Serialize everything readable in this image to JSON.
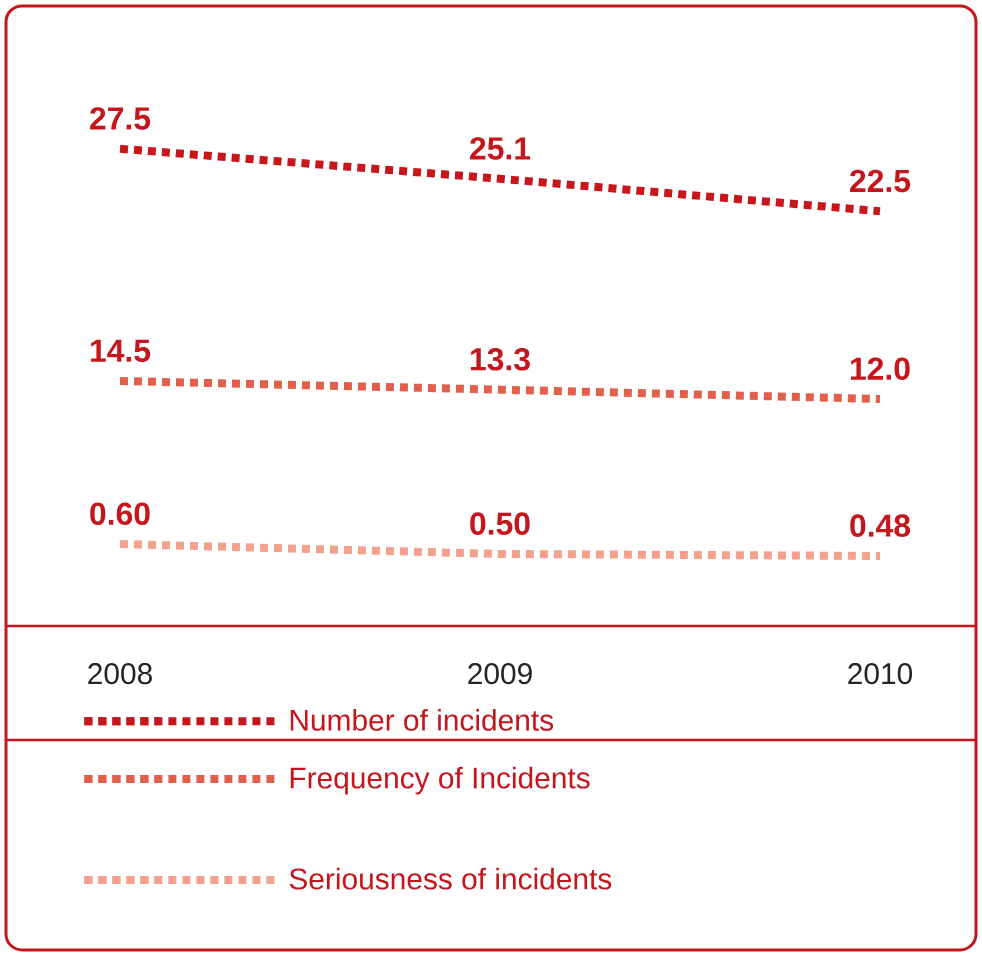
{
  "chart_data": [
    {
      "type": "line",
      "categories": [
        "2008",
        "2009",
        "2010"
      ],
      "series": [
        {
          "name": "Number of incidents",
          "color": "#c8161d",
          "values": [
            27.5,
            25.1,
            22.5
          ],
          "value_labels": [
            "27.5",
            "25.1",
            "22.5"
          ]
        }
      ],
      "line_style": "dotted",
      "tick_labels": false,
      "legend": "bottom"
    },
    {
      "type": "line",
      "categories": [
        "2008",
        "2009",
        "2010"
      ],
      "series": [
        {
          "name": "Frequency of Incidents",
          "color": "#e0604c",
          "values": [
            14.5,
            13.3,
            12.0
          ],
          "value_labels": [
            "14.5",
            "13.3",
            "12.0"
          ]
        }
      ],
      "line_style": "dotted",
      "tick_labels": false,
      "legend": "bottom"
    },
    {
      "type": "line",
      "categories": [
        "2008",
        "2009",
        "2010"
      ],
      "series": [
        {
          "name": "Seriousness of incidents",
          "color": "#f3a08c",
          "values": [
            0.6,
            0.5,
            0.48
          ],
          "value_labels": [
            "0.60",
            "0.50",
            "0.48"
          ]
        }
      ],
      "line_style": "dotted",
      "tick_labels": "x",
      "legend": "bottom"
    }
  ]
}
